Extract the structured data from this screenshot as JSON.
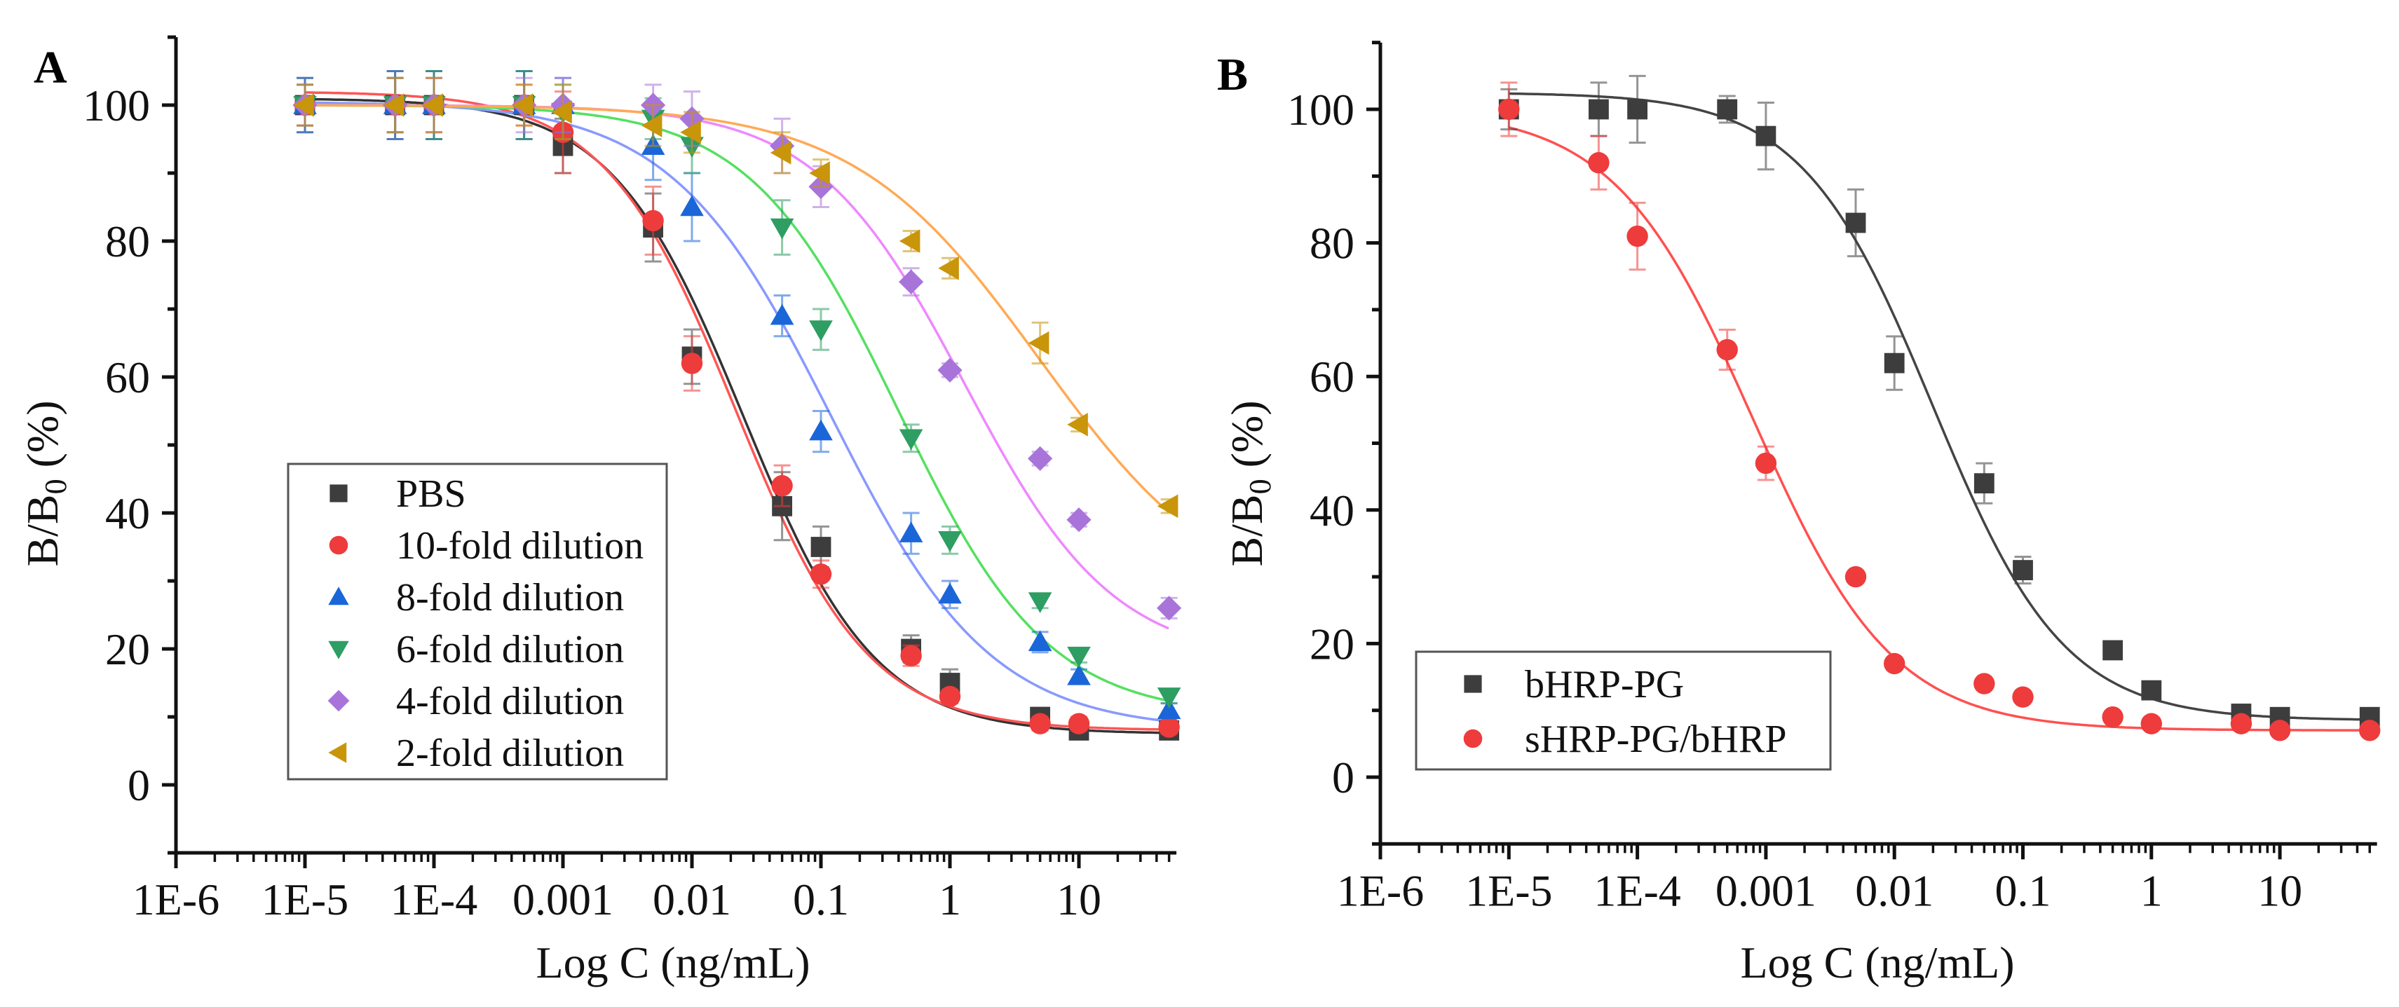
{
  "chart_data": [
    {
      "type": "scatter",
      "panel_label": "A",
      "xlabel": "Log C (ng/mL)",
      "ylabel_main": "B/B",
      "ylabel_sub": "0",
      "ylabel_tail": " (%)",
      "xscale": "log",
      "xlim": [
        1e-06,
        57
      ],
      "ylim": [
        -10,
        110
      ],
      "xticks": [
        "1E-6",
        "1E-5",
        "1E-4",
        "0.001",
        "0.01",
        "0.1",
        "1",
        "10"
      ],
      "xtick_values": [
        1e-06,
        1e-05,
        0.0001,
        0.001,
        0.01,
        0.1,
        1,
        10
      ],
      "yticks": [
        0,
        20,
        40,
        60,
        80,
        100
      ],
      "legend_position": "lower-left",
      "x": [
        1e-05,
        5e-05,
        0.0001,
        0.0005,
        0.001,
        0.005,
        0.01,
        0.05,
        0.1,
        0.5,
        1,
        5,
        10,
        50
      ],
      "series": [
        {
          "name": "PBS",
          "marker": "square",
          "color": "#3d3d3d",
          "curve_color": "#333333",
          "values": [
            100,
            100,
            100,
            100,
            94,
            82,
            63,
            41,
            35,
            20,
            15,
            10,
            8,
            8
          ],
          "errors": [
            4,
            5,
            5,
            5,
            4,
            5,
            4,
            5,
            3,
            2,
            2,
            1,
            1,
            1
          ],
          "fit": {
            "top": 101,
            "bottom": 7.5,
            "x0": 0.025,
            "p": 0.85
          }
        },
        {
          "name": "10-fold dilution",
          "marker": "circle",
          "color": "#ee3b3b",
          "curve_color": "#ff5555",
          "values": [
            100,
            100,
            100,
            100,
            96,
            83,
            62,
            44,
            31,
            19,
            13,
            9,
            9,
            8.5
          ],
          "errors": [
            3,
            4,
            4,
            3,
            6,
            5,
            4,
            3,
            2,
            1.5,
            1,
            1,
            1,
            1
          ],
          "fit": {
            "top": 102,
            "bottom": 8,
            "x0": 0.022,
            "p": 0.85
          }
        },
        {
          "name": "8-fold dilution",
          "marker": "triangle-up",
          "color": "#1a66d9",
          "curve_color": "#8899ff",
          "values": [
            100,
            100,
            100,
            100,
            100,
            94,
            85,
            69,
            52,
            37,
            28,
            21,
            16,
            11
          ],
          "errors": [
            4,
            5,
            5,
            5,
            4,
            5,
            5,
            3,
            3,
            3,
            2,
            1.5,
            1,
            1
          ],
          "fit": {
            "top": 100.5,
            "bottom": 8,
            "x0": 0.12,
            "p": 0.7
          }
        },
        {
          "name": "6-fold dilution",
          "marker": "triangle-down",
          "color": "#2e9e63",
          "curve_color": "#55e060",
          "values": [
            100,
            100,
            100,
            100,
            99,
            98,
            94,
            82,
            67,
            51,
            36,
            27,
            19,
            13
          ],
          "errors": [
            3,
            4,
            5,
            5,
            4,
            3,
            4,
            4,
            3,
            2,
            2,
            1,
            1,
            1
          ],
          "fit": {
            "top": 100,
            "bottom": 10,
            "x0": 0.4,
            "p": 0.75
          }
        },
        {
          "name": "4-fold dilution",
          "marker": "diamond",
          "color": "#a874d9",
          "curve_color": "#ee88ff",
          "values": [
            100,
            100,
            100,
            100,
            100,
            100,
            98,
            94,
            88,
            74,
            61,
            48,
            39,
            26
          ],
          "errors": [
            3,
            4,
            4,
            4,
            4,
            3,
            4,
            4,
            3,
            2,
            1,
            1,
            1,
            1.5
          ],
          "fit": {
            "top": 100,
            "bottom": 18,
            "x0": 1.3,
            "p": 0.75
          }
        },
        {
          "name": "2-fold dilution",
          "marker": "triangle-left",
          "color": "#c9950a",
          "curve_color": "#ffaa55",
          "values": [
            100,
            100,
            100,
            100,
            99,
            97,
            96,
            93,
            90,
            80,
            76,
            65,
            53,
            41
          ],
          "errors": [
            3,
            4,
            4,
            3,
            4,
            3,
            3,
            3,
            2,
            1.5,
            1.5,
            3,
            1,
            1
          ],
          "fit": {
            "top": 100,
            "bottom": 25,
            "x0": 5,
            "p": 0.6
          }
        }
      ]
    },
    {
      "type": "scatter",
      "panel_label": "B",
      "xlabel": "Log C (ng/mL)",
      "ylabel_main": "B/B",
      "ylabel_sub": "0",
      "ylabel_tail": " (%)",
      "xscale": "log",
      "xlim": [
        1e-06,
        57
      ],
      "ylim": [
        -10,
        110
      ],
      "xticks": [
        "1E-6",
        "1E-5",
        "1E-4",
        "0.001",
        "0.01",
        "0.1",
        "1",
        "10"
      ],
      "xtick_values": [
        1e-06,
        1e-05,
        0.0001,
        0.001,
        0.01,
        0.1,
        1,
        10
      ],
      "yticks": [
        0,
        20,
        40,
        60,
        80,
        100
      ],
      "legend_position": "lower-left",
      "x": [
        1e-05,
        5e-05,
        0.0001,
        0.0005,
        0.001,
        0.005,
        0.01,
        0.05,
        0.1,
        0.5,
        1,
        5,
        10,
        50
      ],
      "series": [
        {
          "name": "bHRP-PG",
          "marker": "square",
          "color": "#3d3d3d",
          "curve_color": "#444444",
          "values": [
            100,
            100,
            100,
            100,
            96,
            83,
            62,
            44,
            31,
            19,
            13,
            9.5,
            9,
            9
          ],
          "errors": [
            3,
            4,
            5,
            2,
            5,
            5,
            4,
            3,
            2,
            0.5,
            0.5,
            0.5,
            0.5,
            0.5
          ],
          "fit": {
            "top": 102.5,
            "bottom": 8.5,
            "x0": 0.02,
            "p": 0.85
          }
        },
        {
          "name": "sHRP-PG/bHRP",
          "marker": "circle",
          "color": "#ee3b3b",
          "curve_color": "#ff5050",
          "values": [
            100,
            92,
            81,
            64,
            47,
            30,
            17,
            14,
            12,
            9,
            8,
            8,
            7,
            7
          ],
          "errors": [
            4,
            4,
            5,
            3,
            2.5,
            0.5,
            0.5,
            0.5,
            0.5,
            0.5,
            0.5,
            0.5,
            0.5,
            0.5
          ],
          "fit": {
            "top": 100,
            "bottom": 7,
            "x0": 0.0008,
            "p": 0.8
          }
        }
      ]
    }
  ]
}
